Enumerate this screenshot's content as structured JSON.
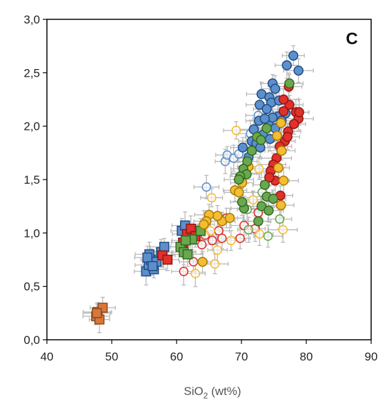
{
  "chart_data": {
    "type": "scatter",
    "panel_label": "C",
    "xlabel": {
      "main": "SiO",
      "sub": "2",
      "unit": " (wt%)"
    },
    "ylabel": "",
    "xlim": [
      40,
      90
    ],
    "ylim": [
      0.0,
      3.0
    ],
    "x_ticks": [
      "40",
      "50",
      "60",
      "70",
      "80",
      "90"
    ],
    "y_ticks": [
      "0,0",
      "0,5",
      "1,0",
      "1,5",
      "2,0",
      "2,5",
      "3,0"
    ],
    "grid": false,
    "error_bars": true,
    "error_bar_color": "#b8b8b8",
    "series": [
      {
        "marker": "square",
        "fill": "#d9773a",
        "edge": "#8a4a1c",
        "filled": true,
        "points": [
          [
            47.8,
            0.26
          ],
          [
            48.6,
            0.3
          ],
          [
            47.6,
            0.22
          ],
          [
            48.1,
            0.19
          ],
          [
            47.7,
            0.25
          ]
        ]
      },
      {
        "marker": "square",
        "fill": "#5b90cc",
        "edge": "#1f4a82",
        "filled": true,
        "points": [
          [
            55.3,
            0.64
          ],
          [
            55.7,
            0.7
          ],
          [
            56.0,
            0.75
          ],
          [
            55.8,
            0.8
          ],
          [
            56.5,
            0.66
          ],
          [
            56.9,
            0.73
          ],
          [
            57.6,
            0.82
          ],
          [
            58.1,
            0.87
          ],
          [
            60.8,
            1.02
          ],
          [
            61.3,
            1.07
          ],
          [
            55.5,
            0.77
          ],
          [
            56.3,
            0.69
          ]
        ]
      },
      {
        "marker": "square",
        "fill": "#e2302a",
        "edge": "#8f1612",
        "filled": true,
        "points": [
          [
            57.8,
            0.79
          ],
          [
            58.6,
            0.75
          ],
          [
            61.6,
            0.99
          ],
          [
            62.2,
            1.04
          ],
          [
            62.9,
            0.97
          ],
          [
            61.0,
            0.91
          ]
        ]
      },
      {
        "marker": "square",
        "fill": "#6aa84f",
        "edge": "#2f6a1f",
        "filled": true,
        "points": [
          [
            60.6,
            0.87
          ],
          [
            61.1,
            0.82
          ],
          [
            61.7,
            0.8
          ],
          [
            62.4,
            0.94
          ],
          [
            63.7,
            1.02
          ],
          [
            61.4,
            0.93
          ]
        ]
      },
      {
        "marker": "circle",
        "fill": "#5b90cc",
        "edge": "#1f4a82",
        "filled": true,
        "points": [
          [
            78.0,
            2.66
          ],
          [
            77.0,
            2.57
          ],
          [
            78.8,
            2.52
          ],
          [
            74.8,
            2.4
          ],
          [
            75.2,
            2.35
          ],
          [
            73.1,
            2.3
          ],
          [
            74.3,
            2.27
          ],
          [
            72.8,
            2.2
          ],
          [
            74.6,
            2.22
          ],
          [
            75.8,
            2.24
          ],
          [
            73.9,
            2.16
          ],
          [
            75.6,
            2.09
          ],
          [
            72.7,
            2.05
          ],
          [
            74.2,
            2.02
          ],
          [
            76.8,
            2.12
          ],
          [
            71.9,
            1.97
          ],
          [
            73.3,
            1.92
          ],
          [
            74.4,
            1.88
          ],
          [
            75.2,
            1.98
          ],
          [
            71.6,
            1.86
          ],
          [
            72.3,
            1.84
          ],
          [
            70.2,
            1.8
          ],
          [
            71.1,
            1.71
          ],
          [
            72.9,
            1.8
          ],
          [
            74.8,
            2.08
          ],
          [
            76.2,
            2.05
          ],
          [
            73.6,
            2.07
          ]
        ]
      },
      {
        "marker": "circle",
        "fill": "#e2302a",
        "edge": "#8f1612",
        "filled": true,
        "points": [
          [
            77.4,
            2.2
          ],
          [
            78.4,
            2.13
          ],
          [
            78.8,
            2.07
          ],
          [
            77.3,
            2.37
          ],
          [
            76.5,
            2.14
          ],
          [
            78.1,
            2.02
          ],
          [
            77.2,
            1.95
          ],
          [
            76.7,
            1.86
          ],
          [
            75.9,
            1.81
          ],
          [
            77.1,
            1.9
          ],
          [
            75.4,
            1.7
          ],
          [
            74.9,
            1.64
          ],
          [
            74.5,
            1.58
          ],
          [
            75.2,
            1.49
          ],
          [
            76.0,
            1.35
          ],
          [
            74.3,
            1.52
          ],
          [
            76.5,
            2.25
          ],
          [
            78.9,
            2.13
          ]
        ]
      },
      {
        "marker": "circle",
        "fill": "#f4bd32",
        "edge": "#a87a00",
        "filled": true,
        "points": [
          [
            76.1,
            2.03
          ],
          [
            75.5,
            1.91
          ],
          [
            76.2,
            1.77
          ],
          [
            75.7,
            1.61
          ],
          [
            76.5,
            1.49
          ],
          [
            76.1,
            1.26
          ],
          [
            71.1,
            1.62
          ],
          [
            70.1,
            1.47
          ],
          [
            69.0,
            1.4
          ],
          [
            67.0,
            1.11
          ],
          [
            66.3,
            1.16
          ],
          [
            65.0,
            1.17
          ],
          [
            64.6,
            1.11
          ],
          [
            64.2,
            1.08
          ],
          [
            68.2,
            1.14
          ],
          [
            69.6,
            1.38
          ],
          [
            70.4,
            1.56
          ],
          [
            64.0,
            0.73
          ]
        ]
      },
      {
        "marker": "circle",
        "fill": "#6aa84f",
        "edge": "#2f6a1f",
        "filled": true,
        "points": [
          [
            77.4,
            2.4
          ],
          [
            73.9,
            1.98
          ],
          [
            72.4,
            1.9
          ],
          [
            73.0,
            1.87
          ],
          [
            71.6,
            1.77
          ],
          [
            70.9,
            1.67
          ],
          [
            70.3,
            1.6
          ],
          [
            70.8,
            1.55
          ],
          [
            69.8,
            1.53
          ],
          [
            69.6,
            1.5
          ],
          [
            73.6,
            1.45
          ],
          [
            73.9,
            1.34
          ],
          [
            73.1,
            1.25
          ],
          [
            74.2,
            1.21
          ],
          [
            72.6,
            1.11
          ],
          [
            70.4,
            1.23
          ],
          [
            70.1,
            1.29
          ],
          [
            74.9,
            1.32
          ]
        ]
      },
      {
        "marker": "circle",
        "fill": "none",
        "edge": "#e2302a",
        "filled": false,
        "points": [
          [
            67.7,
            1.14
          ],
          [
            70.4,
            1.07
          ],
          [
            72.1,
            1.04
          ],
          [
            66.5,
            1.02
          ],
          [
            67.0,
            0.95
          ],
          [
            65.5,
            0.93
          ],
          [
            63.9,
            0.89
          ],
          [
            62.6,
            0.73
          ],
          [
            61.1,
            0.64
          ],
          [
            69.8,
            0.95
          ],
          [
            64.4,
            0.98
          ],
          [
            72.6,
            1.19
          ]
        ]
      },
      {
        "marker": "circle",
        "fill": "none",
        "edge": "#5b90cc",
        "filled": false,
        "points": [
          [
            64.6,
            1.43
          ],
          [
            67.5,
            1.67
          ],
          [
            67.8,
            1.73
          ],
          [
            68.8,
            1.7
          ],
          [
            69.6,
            1.74
          ],
          [
            72.6,
            2.1
          ],
          [
            71.4,
            1.93
          ],
          [
            74.3,
            2.12
          ]
        ]
      },
      {
        "marker": "circle",
        "fill": "none",
        "edge": "#f4bd32",
        "filled": false,
        "points": [
          [
            69.2,
            1.96
          ],
          [
            72.7,
            1.6
          ],
          [
            65.4,
            1.33
          ],
          [
            62.9,
            0.62
          ],
          [
            65.9,
            0.71
          ],
          [
            68.4,
            0.93
          ],
          [
            65.2,
            1.02
          ],
          [
            66.3,
            0.84
          ],
          [
            72.8,
            0.99
          ],
          [
            76.4,
            1.03
          ],
          [
            71.8,
            1.31
          ]
        ]
      },
      {
        "marker": "circle",
        "fill": "none",
        "edge": "#6aa84f",
        "filled": false,
        "points": [
          [
            73.2,
            1.38
          ],
          [
            75.9,
            1.13
          ],
          [
            74.1,
            0.97
          ],
          [
            71.1,
            1.03
          ],
          [
            70.9,
            1.22
          ]
        ]
      }
    ]
  }
}
